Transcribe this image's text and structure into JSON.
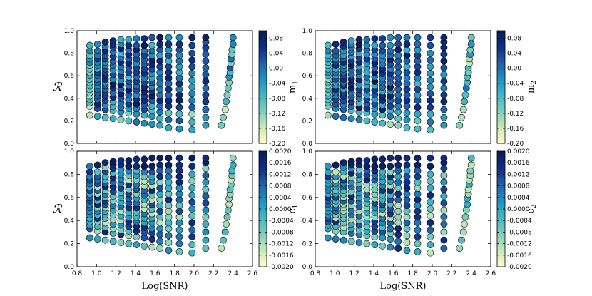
{
  "chart_data": [
    {
      "type": "scatter",
      "panel": "top-left",
      "xlabel": "",
      "ylabel": "ℛ",
      "xlim": [
        0.8,
        2.6
      ],
      "ylim": [
        0.0,
        1.0
      ],
      "xticks": [],
      "yticks": [
        "0.0",
        "0.2",
        "0.4",
        "0.6",
        "0.8",
        "1.0"
      ],
      "colorbar": {
        "label": "m",
        "subscript": "1",
        "range": [
          -0.2,
          0.1
        ],
        "ticks": [
          "0.08",
          "0.04",
          "0.00",
          "-0.04",
          "-0.08",
          "-0.12",
          "-0.16",
          "-0.20"
        ],
        "tick_values": [
          0.08,
          0.04,
          0.0,
          -0.04,
          -0.08,
          -0.12,
          -0.16,
          -0.2
        ]
      },
      "seed": 11
    },
    {
      "type": "scatter",
      "panel": "top-right",
      "xlabel": "",
      "ylabel": "",
      "xlim": [
        0.8,
        2.6
      ],
      "ylim": [
        0.0,
        1.0
      ],
      "xticks": [],
      "yticks": [
        "0.0",
        "0.2",
        "0.4",
        "0.6",
        "0.8",
        "1.0"
      ],
      "colorbar": {
        "label": "m",
        "subscript": "2",
        "range": [
          -0.2,
          0.1
        ],
        "ticks": [
          "0.08",
          "0.04",
          "0.00",
          "-0.04",
          "-0.08",
          "-0.12",
          "-0.16",
          "-0.20"
        ],
        "tick_values": [
          0.08,
          0.04,
          0.0,
          -0.04,
          -0.08,
          -0.12,
          -0.16,
          -0.2
        ]
      },
      "seed": 23
    },
    {
      "type": "scatter",
      "panel": "bottom-left",
      "xlabel": "Log(SNR)",
      "ylabel": "ℛ",
      "xlim": [
        0.8,
        2.6
      ],
      "ylim": [
        0.0,
        1.0
      ],
      "xticks": [
        "0.8",
        "1.0",
        "1.2",
        "1.4",
        "1.6",
        "1.8",
        "2.0",
        "2.2",
        "2.4",
        "2.6"
      ],
      "yticks": [
        "0.0",
        "0.2",
        "0.4",
        "0.6",
        "0.8",
        "1.0"
      ],
      "colorbar": {
        "label": "c",
        "subscript": "1",
        "range": [
          -0.002,
          0.002
        ],
        "ticks": [
          "0.0020",
          "0.0016",
          "0.0012",
          "0.0008",
          "0.0004",
          "0.0000",
          "-0.0004",
          "-0.0008",
          "-0.0012",
          "-0.0016",
          "-0.0020"
        ],
        "tick_values": [
          0.002,
          0.0016,
          0.0012,
          0.0008,
          0.0004,
          0.0,
          -0.0004,
          -0.0008,
          -0.0012,
          -0.0016,
          -0.002
        ]
      },
      "seed": 37
    },
    {
      "type": "scatter",
      "panel": "bottom-right",
      "xlabel": "Log(SNR)",
      "ylabel": "",
      "xlim": [
        0.8,
        2.6
      ],
      "ylim": [
        0.0,
        1.0
      ],
      "xticks": [
        "0.8",
        "1.0",
        "1.2",
        "1.4",
        "1.6",
        "1.8",
        "2.0",
        "2.2",
        "2.4",
        "2.6"
      ],
      "yticks": [
        "0.0",
        "0.2",
        "0.4",
        "0.6",
        "0.8",
        "1.0"
      ],
      "colorbar": {
        "label": "c",
        "subscript": "2",
        "range": [
          -0.002,
          0.002
        ],
        "ticks": [
          "0.0020",
          "0.0016",
          "0.0012",
          "0.0008",
          "0.0004",
          "0.0000",
          "-0.0004",
          "-0.0008",
          "-0.0012",
          "-0.0016",
          "-0.0020"
        ],
        "tick_values": [
          0.002,
          0.0016,
          0.0012,
          0.0008,
          0.0004,
          0.0,
          -0.0004,
          -0.0008,
          -0.0012,
          -0.0016,
          -0.002
        ]
      },
      "seed": 53
    }
  ],
  "grid_columns": [
    {
      "x": 0.93,
      "r": [
        0.25,
        0.33,
        0.36,
        0.39,
        0.42,
        0.45,
        0.48,
        0.51,
        0.54,
        0.57,
        0.6,
        0.63,
        0.66,
        0.69,
        0.72,
        0.75,
        0.78,
        0.82,
        0.87
      ]
    },
    {
      "x": 1.01,
      "r": [
        0.24,
        0.31,
        0.35,
        0.39,
        0.42,
        0.45,
        0.48,
        0.51,
        0.54,
        0.57,
        0.6,
        0.63,
        0.66,
        0.69,
        0.72,
        0.75,
        0.78,
        0.82,
        0.88
      ]
    },
    {
      "x": 1.09,
      "r": [
        0.23,
        0.3,
        0.34,
        0.38,
        0.42,
        0.45,
        0.48,
        0.51,
        0.54,
        0.57,
        0.6,
        0.63,
        0.66,
        0.69,
        0.72,
        0.75,
        0.78,
        0.82,
        0.86,
        0.9
      ]
    },
    {
      "x": 1.17,
      "r": [
        0.22,
        0.29,
        0.33,
        0.37,
        0.41,
        0.45,
        0.49,
        0.53,
        0.57,
        0.61,
        0.65,
        0.69,
        0.73,
        0.77,
        0.81,
        0.85,
        0.88,
        0.91
      ]
    },
    {
      "x": 1.25,
      "r": [
        0.21,
        0.28,
        0.32,
        0.36,
        0.4,
        0.44,
        0.48,
        0.52,
        0.56,
        0.6,
        0.64,
        0.68,
        0.72,
        0.76,
        0.8,
        0.84,
        0.88,
        0.92
      ]
    },
    {
      "x": 1.33,
      "r": [
        0.2,
        0.27,
        0.31,
        0.35,
        0.39,
        0.43,
        0.47,
        0.51,
        0.55,
        0.59,
        0.63,
        0.67,
        0.71,
        0.75,
        0.79,
        0.83,
        0.87,
        0.92
      ]
    },
    {
      "x": 1.41,
      "r": [
        0.19,
        0.26,
        0.31,
        0.35,
        0.39,
        0.43,
        0.47,
        0.51,
        0.55,
        0.59,
        0.63,
        0.67,
        0.71,
        0.75,
        0.79,
        0.83,
        0.87,
        0.93
      ]
    },
    {
      "x": 1.49,
      "r": [
        0.18,
        0.25,
        0.3,
        0.34,
        0.38,
        0.42,
        0.46,
        0.5,
        0.54,
        0.58,
        0.62,
        0.66,
        0.7,
        0.74,
        0.78,
        0.82,
        0.87,
        0.93
      ]
    },
    {
      "x": 1.57,
      "r": [
        0.17,
        0.24,
        0.29,
        0.33,
        0.38,
        0.42,
        0.46,
        0.5,
        0.54,
        0.58,
        0.62,
        0.66,
        0.7,
        0.74,
        0.78,
        0.82,
        0.87,
        0.94
      ]
    },
    {
      "x": 1.65,
      "r": [
        0.16,
        0.22,
        0.28,
        0.33,
        0.38,
        0.43,
        0.48,
        0.53,
        0.58,
        0.63,
        0.68,
        0.73,
        0.78,
        0.83,
        0.88,
        0.94
      ]
    },
    {
      "x": 1.74,
      "r": [
        0.14,
        0.21,
        0.27,
        0.33,
        0.38,
        0.43,
        0.48,
        0.53,
        0.58,
        0.63,
        0.68,
        0.73,
        0.78,
        0.83,
        0.88,
        0.94
      ]
    },
    {
      "x": 1.85,
      "r": [
        0.13,
        0.2,
        0.26,
        0.32,
        0.38,
        0.43,
        0.48,
        0.53,
        0.58,
        0.63,
        0.68,
        0.73,
        0.78,
        0.83,
        0.88,
        0.94
      ]
    },
    {
      "x": 1.98,
      "r": [
        0.12,
        0.19,
        0.26,
        0.32,
        0.38,
        0.44,
        0.5,
        0.56,
        0.62,
        0.68,
        0.74,
        0.8,
        0.87,
        0.94
      ]
    },
    {
      "x": 2.12,
      "r": [
        0.16,
        0.23,
        0.3,
        0.37,
        0.43,
        0.49,
        0.55,
        0.61,
        0.67,
        0.73,
        0.79,
        0.85,
        0.9,
        0.94
      ]
    }
  ],
  "tail_column": {
    "x": [
      2.28,
      2.3,
      2.32,
      2.33,
      2.34,
      2.35,
      2.36,
      2.36,
      2.37,
      2.37,
      2.38,
      2.38,
      2.39,
      2.39,
      2.4,
      2.4
    ],
    "r": [
      0.16,
      0.23,
      0.3,
      0.37,
      0.43,
      0.49,
      0.54,
      0.59,
      0.63,
      0.67,
      0.71,
      0.75,
      0.79,
      0.83,
      0.88,
      0.94
    ]
  }
}
